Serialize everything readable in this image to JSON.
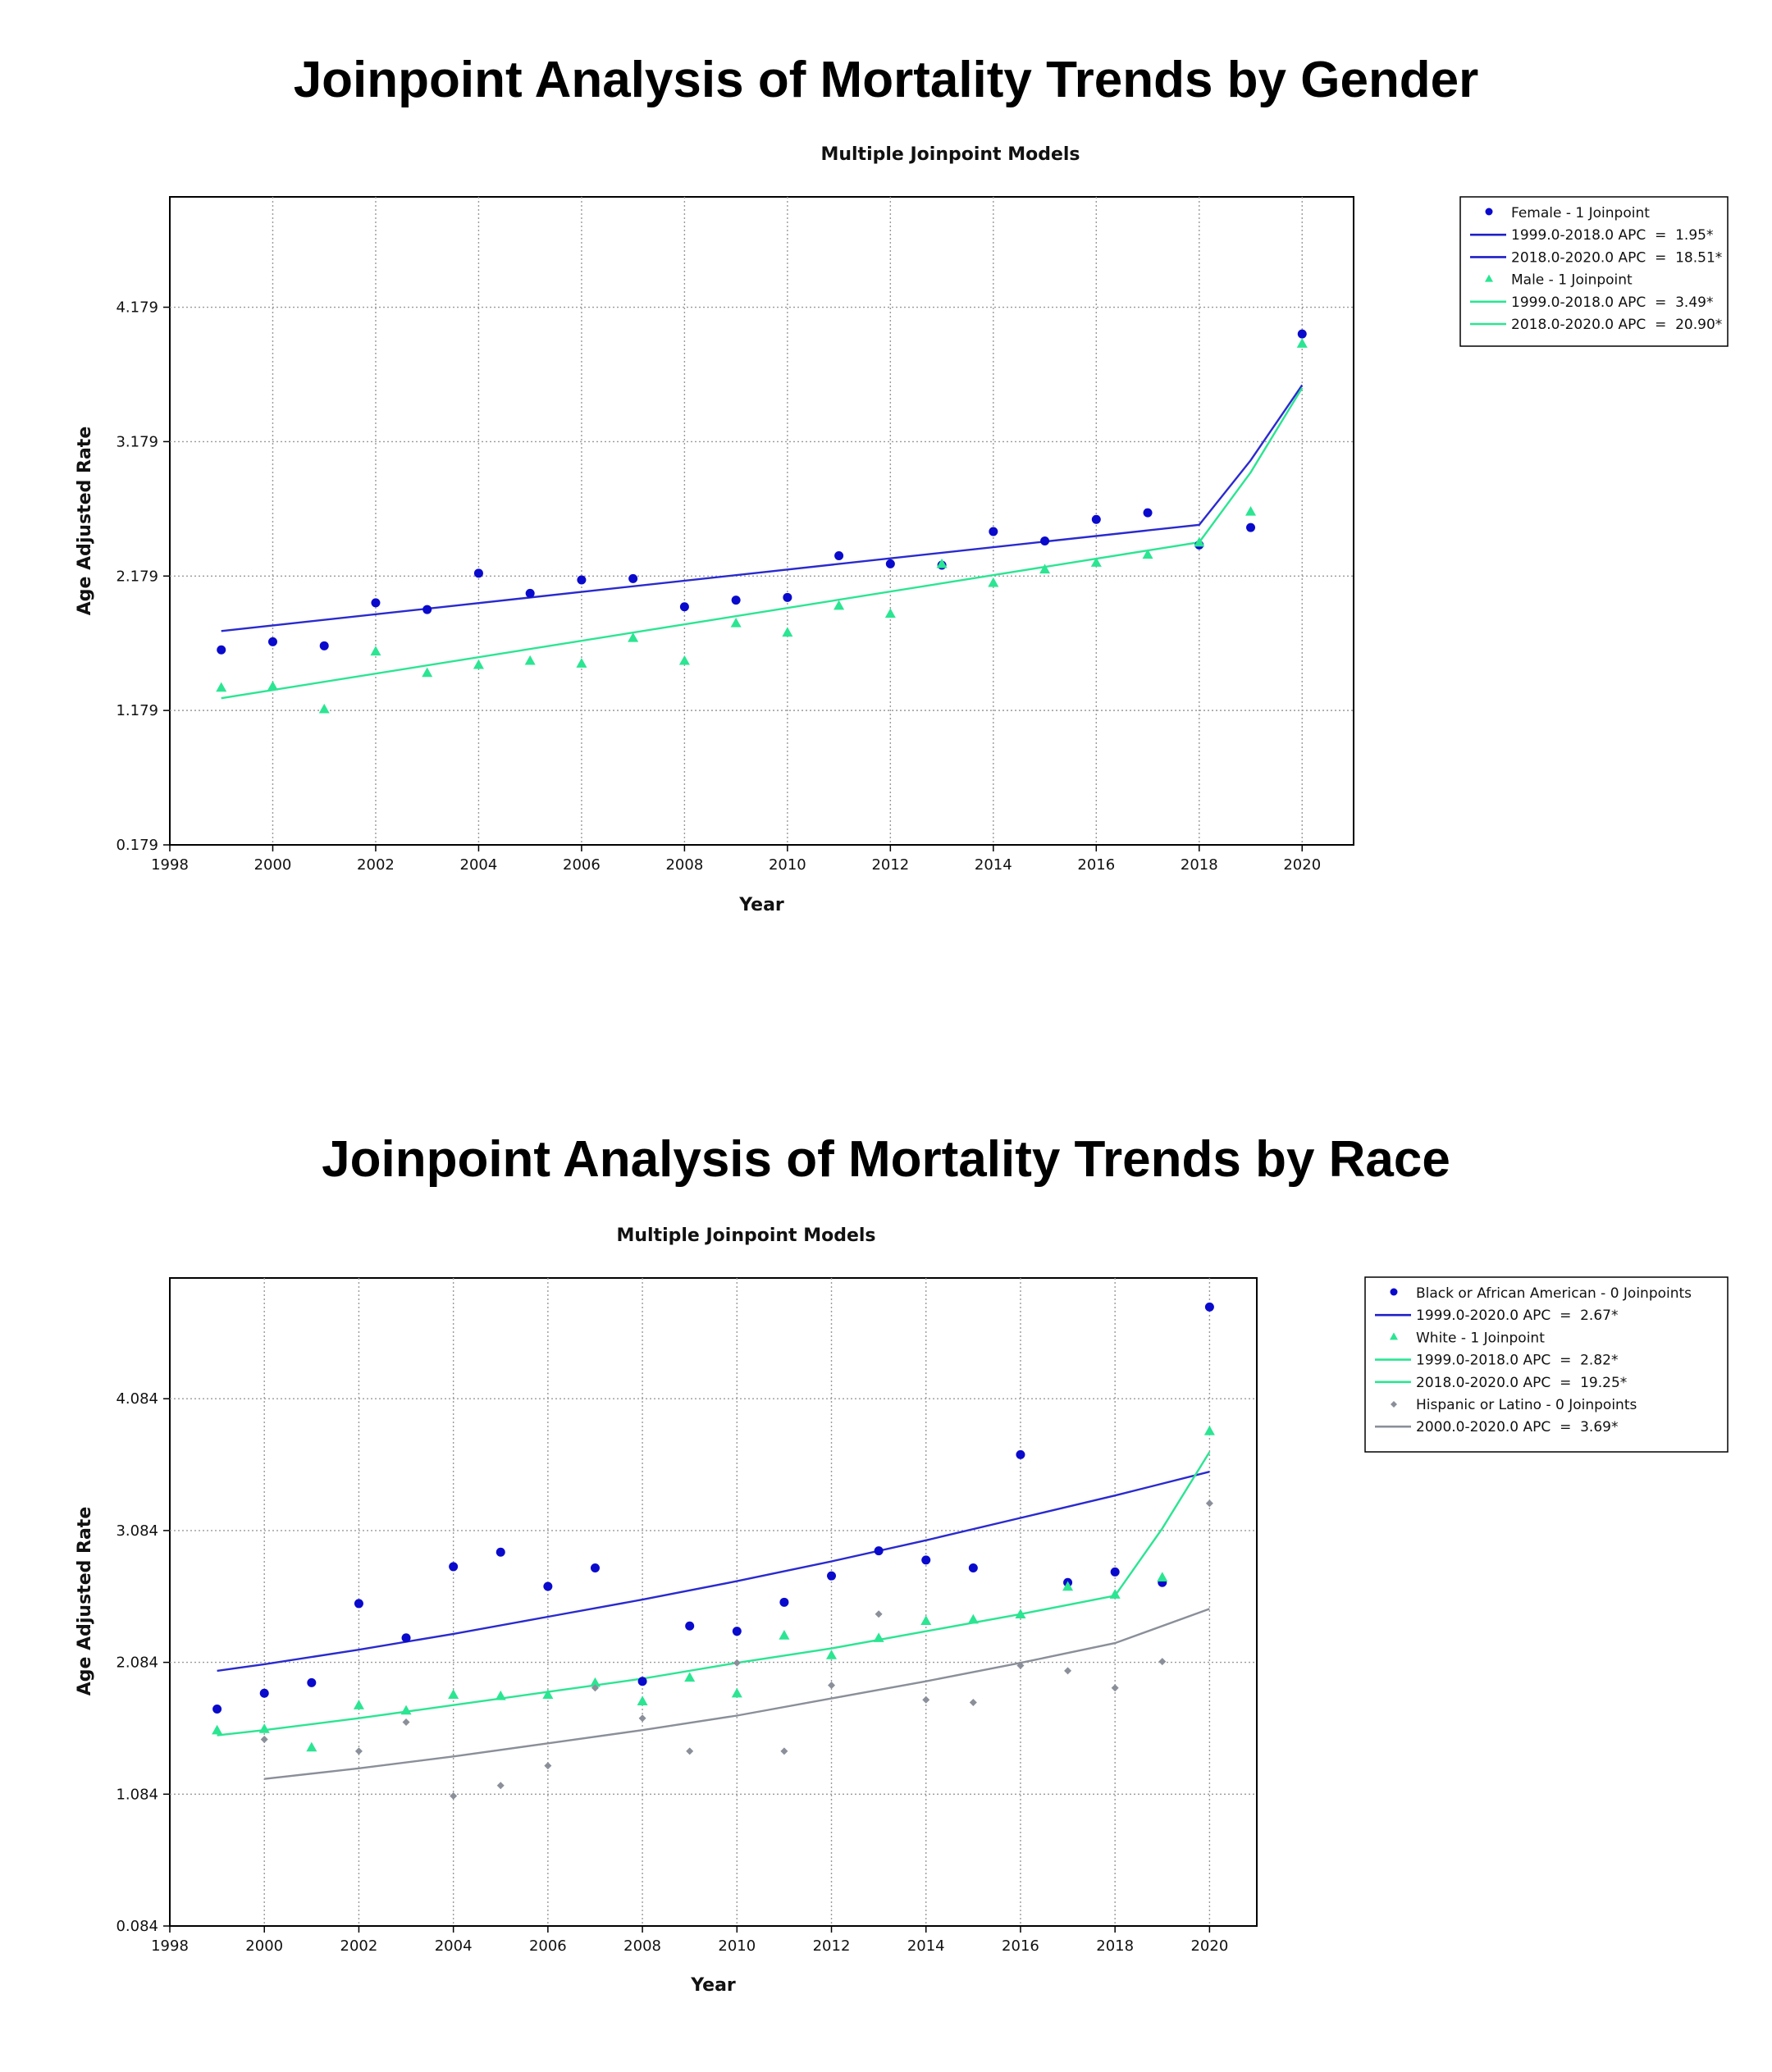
{
  "figures": [
    {
      "title": "Joinpoint Analysis of Mortality Trends by Gender"
    },
    {
      "title": "Joinpoint Analysis of Mortality Trends by Race"
    }
  ],
  "chart_data": [
    {
      "type": "scatter",
      "title": "Multiple Joinpoint Models",
      "xlabel": "Year",
      "ylabel": "Age Adjusted Rate",
      "xlim": [
        1998,
        2021
      ],
      "ylim": [
        0.179,
        5.0
      ],
      "xticks": [
        "1998",
        "2000",
        "2002",
        "2004",
        "2006",
        "2008",
        "2010",
        "2012",
        "2014",
        "2016",
        "2018",
        "2020"
      ],
      "yticks": [
        "0.179",
        "1.179",
        "2.179",
        "3.179",
        "4.179"
      ],
      "grid": true,
      "legend_position": "outside-right",
      "legend": [
        {
          "label": "Female - 1 Joinpoint",
          "kind": "dot",
          "color": "#0a0acc"
        },
        {
          "label": "1999.0-2018.0 APC  =  1.95*",
          "kind": "line",
          "color": "#1e1ec8"
        },
        {
          "label": "2018.0-2020.0 APC  =  18.51*",
          "kind": "line",
          "color": "#1e1ec8"
        },
        {
          "label": "Male - 1 Joinpoint",
          "kind": "triangle",
          "color": "#2be592"
        },
        {
          "label": "1999.0-2018.0 APC  =  3.49*",
          "kind": "line",
          "color": "#2be592"
        },
        {
          "label": "2018.0-2020.0 APC  =  20.90*",
          "kind": "line",
          "color": "#2be592"
        }
      ],
      "series": [
        {
          "name": "Female - 1 Joinpoint",
          "marker": "dot",
          "color": "#0a0acc",
          "x": [
            1999,
            2000,
            2001,
            2002,
            2003,
            2004,
            2005,
            2006,
            2007,
            2008,
            2009,
            2010,
            2011,
            2012,
            2013,
            2014,
            2015,
            2016,
            2017,
            2018,
            2019,
            2020
          ],
          "y": [
            1.63,
            1.69,
            1.66,
            1.98,
            1.93,
            2.2,
            2.05,
            2.15,
            2.16,
            1.95,
            2.0,
            2.02,
            2.33,
            2.27,
            2.26,
            2.51,
            2.44,
            2.6,
            2.65,
            2.41,
            2.54,
            3.98
          ],
          "fit_x": [
            1999,
            2018,
            2019,
            2020
          ],
          "fit_y": [
            1.77,
            2.56,
            3.04,
            3.6
          ]
        },
        {
          "name": "Male - 1 Joinpoint",
          "marker": "triangle",
          "color": "#2be592",
          "x": [
            1999,
            2000,
            2001,
            2002,
            2003,
            2004,
            2005,
            2006,
            2007,
            2008,
            2009,
            2010,
            2011,
            2012,
            2013,
            2014,
            2015,
            2016,
            2017,
            2018,
            2019,
            2020
          ],
          "y": [
            1.35,
            1.36,
            1.19,
            1.62,
            1.46,
            1.52,
            1.55,
            1.53,
            1.72,
            1.55,
            1.83,
            1.76,
            1.96,
            1.9,
            2.27,
            2.13,
            2.23,
            2.28,
            2.34,
            2.43,
            2.66,
            3.91
          ],
          "fit_x": [
            1999,
            2018,
            2019,
            2020
          ],
          "fit_y": [
            1.27,
            2.43,
            2.95,
            3.58
          ]
        }
      ]
    },
    {
      "type": "scatter",
      "title": "Multiple Joinpoint Models",
      "xlabel": "Year",
      "ylabel": "Age Adjusted Rate",
      "xlim": [
        1998,
        2021
      ],
      "ylim": [
        0.084,
        5.0
      ],
      "xticks": [
        "1998",
        "2000",
        "2002",
        "2004",
        "2006",
        "2008",
        "2010",
        "2012",
        "2014",
        "2016",
        "2018",
        "2020"
      ],
      "yticks": [
        "0.084",
        "1.084",
        "2.084",
        "3.084",
        "4.084"
      ],
      "grid": true,
      "legend_position": "outside-right",
      "legend": [
        {
          "label": "Black or African American - 0 Joinpoints",
          "kind": "dot",
          "color": "#0a0acc"
        },
        {
          "label": "1999.0-2020.0 APC  =  2.67*",
          "kind": "line",
          "color": "#1e1ec8"
        },
        {
          "label": "White - 1 Joinpoint",
          "kind": "triangle",
          "color": "#2be592"
        },
        {
          "label": "1999.0-2018.0 APC  =  2.82*",
          "kind": "line",
          "color": "#2be592"
        },
        {
          "label": "2018.0-2020.0 APC  =  19.25*",
          "kind": "line",
          "color": "#2be592"
        },
        {
          "label": "Hispanic or Latino - 0 Joinpoints",
          "kind": "diamond",
          "color": "#8a8f99"
        },
        {
          "label": "2000.0-2020.0 APC  =  3.69*",
          "kind": "line",
          "color": "#8a8f99"
        }
      ],
      "series": [
        {
          "name": "Black or African American - 0 Joinpoints",
          "marker": "dot",
          "color": "#0a0acc",
          "x": [
            1999,
            2000,
            2001,
            2002,
            2003,
            2004,
            2005,
            2006,
            2007,
            2008,
            2009,
            2010,
            2011,
            2012,
            2013,
            2014,
            2015,
            2016,
            2017,
            2018,
            2019,
            2020
          ],
          "y": [
            1.73,
            1.85,
            1.93,
            2.53,
            2.27,
            2.81,
            2.92,
            2.66,
            2.8,
            1.94,
            2.36,
            2.32,
            2.54,
            2.74,
            2.93,
            2.86,
            2.8,
            3.66,
            2.69,
            2.77,
            2.69,
            4.78
          ],
          "fit_x": [
            1999,
            2000,
            2002,
            2004,
            2006,
            2008,
            2010,
            2012,
            2014,
            2016,
            2018,
            2020
          ],
          "fit_y": [
            2.02,
            2.07,
            2.18,
            2.3,
            2.43,
            2.56,
            2.7,
            2.85,
            3.01,
            3.18,
            3.35,
            3.53
          ]
        },
        {
          "name": "White - 1 Joinpoint",
          "marker": "triangle",
          "color": "#2be592",
          "x": [
            1999,
            2000,
            2001,
            2002,
            2003,
            2004,
            2005,
            2006,
            2007,
            2008,
            2009,
            2010,
            2011,
            2012,
            2013,
            2014,
            2015,
            2016,
            2017,
            2018,
            2019,
            2020
          ],
          "y": [
            1.57,
            1.58,
            1.44,
            1.76,
            1.72,
            1.84,
            1.83,
            1.84,
            1.93,
            1.79,
            1.97,
            1.85,
            2.29,
            2.14,
            2.27,
            2.4,
            2.41,
            2.45,
            2.66,
            2.6,
            2.73,
            3.84
          ],
          "fit_x": [
            1999,
            2000,
            2002,
            2004,
            2006,
            2008,
            2010,
            2012,
            2014,
            2016,
            2018,
            2019,
            2020
          ],
          "fit_y": [
            1.53,
            1.57,
            1.66,
            1.76,
            1.86,
            1.96,
            2.08,
            2.19,
            2.32,
            2.45,
            2.59,
            3.1,
            3.68
          ]
        },
        {
          "name": "Hispanic or Latino - 0 Joinpoints",
          "marker": "diamond",
          "color": "#8a8f99",
          "x": [
            2000,
            2002,
            2003,
            2004,
            2005,
            2006,
            2007,
            2008,
            2009,
            2010,
            2011,
            2012,
            2013,
            2014,
            2015,
            2016,
            2017,
            2018,
            2019,
            2020
          ],
          "y": [
            1.5,
            1.41,
            1.63,
            1.07,
            1.15,
            1.3,
            1.89,
            1.66,
            1.41,
            2.08,
            1.41,
            1.91,
            2.45,
            1.8,
            1.78,
            2.06,
            2.02,
            1.89,
            2.09,
            3.29
          ],
          "fit_x": [
            2000,
            2002,
            2004,
            2006,
            2008,
            2010,
            2012,
            2014,
            2016,
            2018,
            2020
          ],
          "fit_y": [
            1.2,
            1.28,
            1.37,
            1.47,
            1.57,
            1.68,
            1.81,
            1.94,
            2.08,
            2.23,
            2.49
          ]
        }
      ]
    }
  ]
}
